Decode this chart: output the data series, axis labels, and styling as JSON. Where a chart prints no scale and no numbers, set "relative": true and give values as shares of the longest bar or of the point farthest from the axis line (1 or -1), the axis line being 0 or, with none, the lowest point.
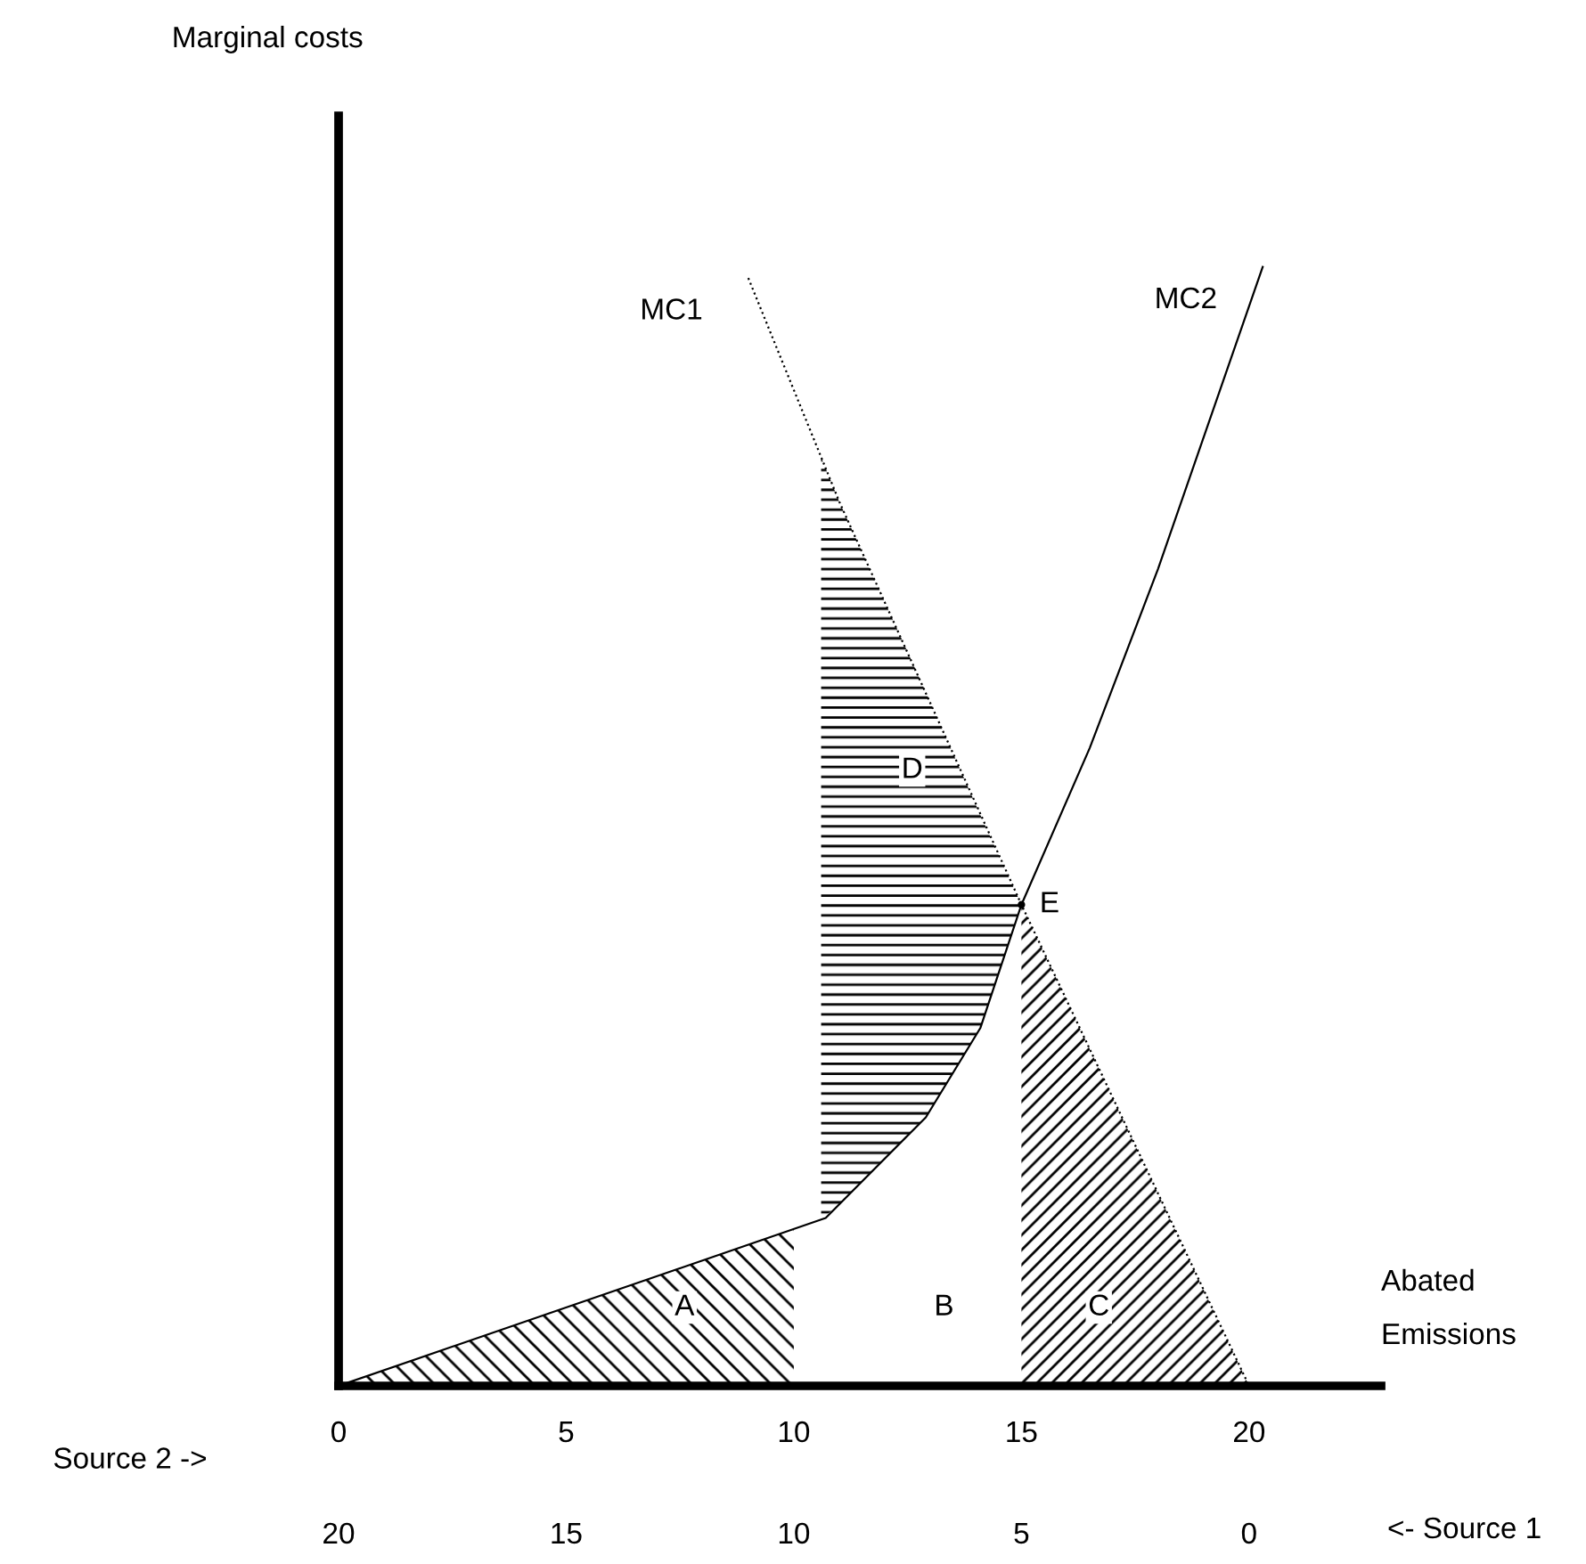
{
  "chart_data": {
    "type": "line",
    "relative": true,
    "xlabel": "Source 2 ->",
    "x2label": "<- Source 1",
    "xlim": [
      0,
      22.9
    ],
    "xticks": [
      0,
      5,
      10,
      15,
      20
    ],
    "x2lim": [
      20,
      -2.9
    ],
    "x2ticks": [
      20,
      15,
      10,
      5,
      0
    ],
    "tick_labels": "x",
    "grid": false,
    "marker": "none",
    "series": [
      {
        "name": "MC1",
        "color": "#000000",
        "line_style": "dotted",
        "x": [
          9.0,
          11.0,
          15.0,
          20.0
        ],
        "values": [
          0.99,
          0.79,
          0.43,
          0
        ]
      },
      {
        "name": "MC2",
        "color": "#000000",
        "line_style": "solid",
        "x": [
          0,
          10.7,
          12.9,
          14.1,
          15.0,
          16.5,
          18.0,
          20.3
        ],
        "values": [
          0,
          0.15,
          0.24,
          0.32,
          0.43,
          0.57,
          0.73,
          1.0
        ]
      },
      {
        "type": "area",
        "color": "#000000",
        "x": [
          0,
          10
        ],
        "values": [
          0,
          0.14
        ]
      },
      {
        "type": "area",
        "color": "#000000",
        "x": [
          15,
          20
        ],
        "values": [
          0.43,
          0
        ]
      },
      {
        "type": "area",
        "color": "#000000",
        "x": [
          10.6,
          11.0,
          12.9,
          14.1,
          15.0
        ],
        "values": [
          0.83,
          0.79,
          0.62,
          0.51,
          0.43
        ]
      }
    ],
    "annotations": [
      {
        "text": "A",
        "x": 7.6,
        "y": 0.07
      },
      {
        "text": "B",
        "x": 13.3,
        "y": 0.07
      },
      {
        "text": "C",
        "x": 16.7,
        "y": 0.07
      },
      {
        "text": "D",
        "x": 12.6,
        "y": 0.55
      },
      {
        "text": "E",
        "x": 15.0,
        "y": 0.43
      },
      "Marginal costs",
      "Abated Emissions"
    ]
  }
}
